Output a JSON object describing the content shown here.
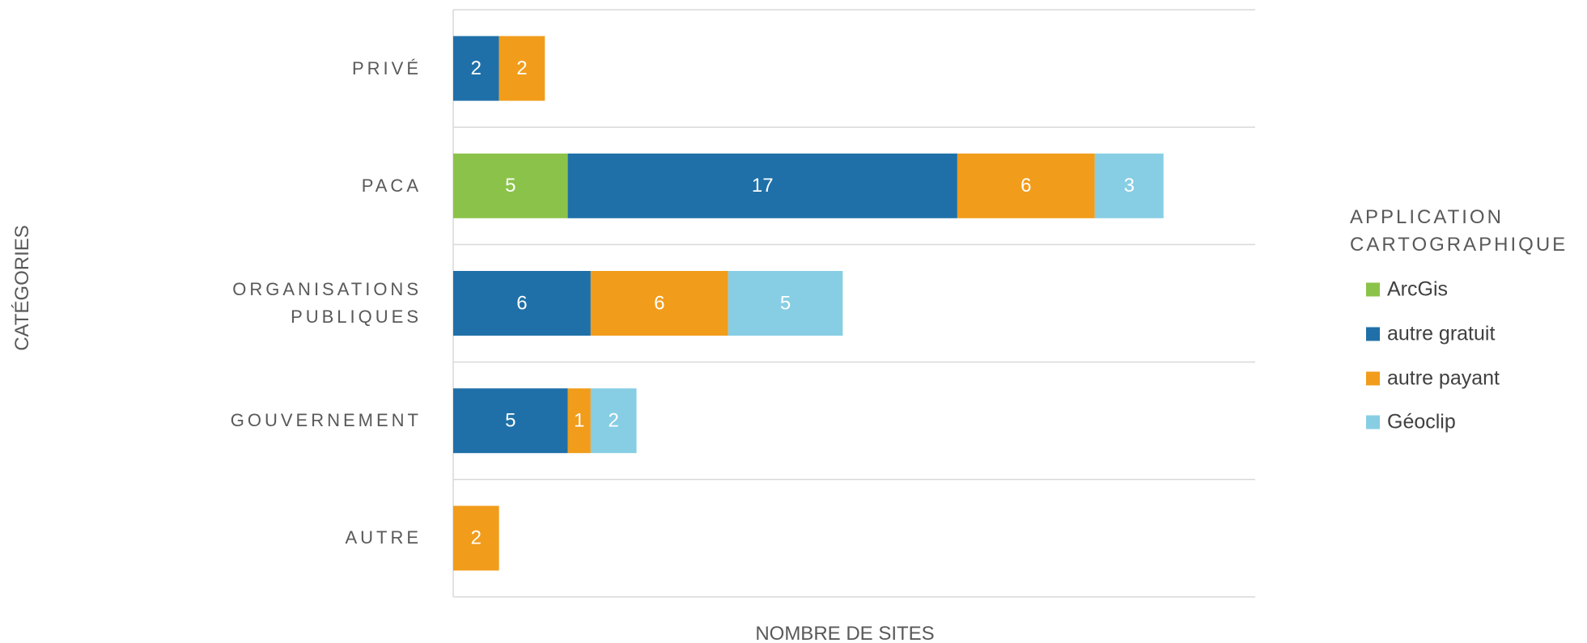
{
  "chart_data": {
    "type": "bar",
    "orientation": "horizontal",
    "stacked": true,
    "xlabel": "NOMBRE DE SITES",
    "ylabel": "CATÉGORIES",
    "legend_title": "APPLICATION CARTOGRAPHIQUE",
    "legend_position": "right",
    "categories": [
      "PRIVÉ",
      "PACA",
      "ORGANISATIONS PUBLIQUES",
      "GOUVERNEMENT",
      "AUTRE"
    ],
    "xlim": [
      0,
      35
    ],
    "series": [
      {
        "name": "ArcGis",
        "color": "#8bc34a",
        "values": [
          null,
          5,
          null,
          null,
          null
        ]
      },
      {
        "name": "autre gratuit",
        "color": "#1f70a8",
        "values": [
          2,
          17,
          6,
          5,
          null
        ]
      },
      {
        "name": "autre payant",
        "color": "#f19c1b",
        "values": [
          2,
          6,
          6,
          1,
          2
        ]
      },
      {
        "name": "Géoclip",
        "color": "#87cee4",
        "values": [
          null,
          3,
          5,
          2,
          null
        ]
      }
    ]
  }
}
